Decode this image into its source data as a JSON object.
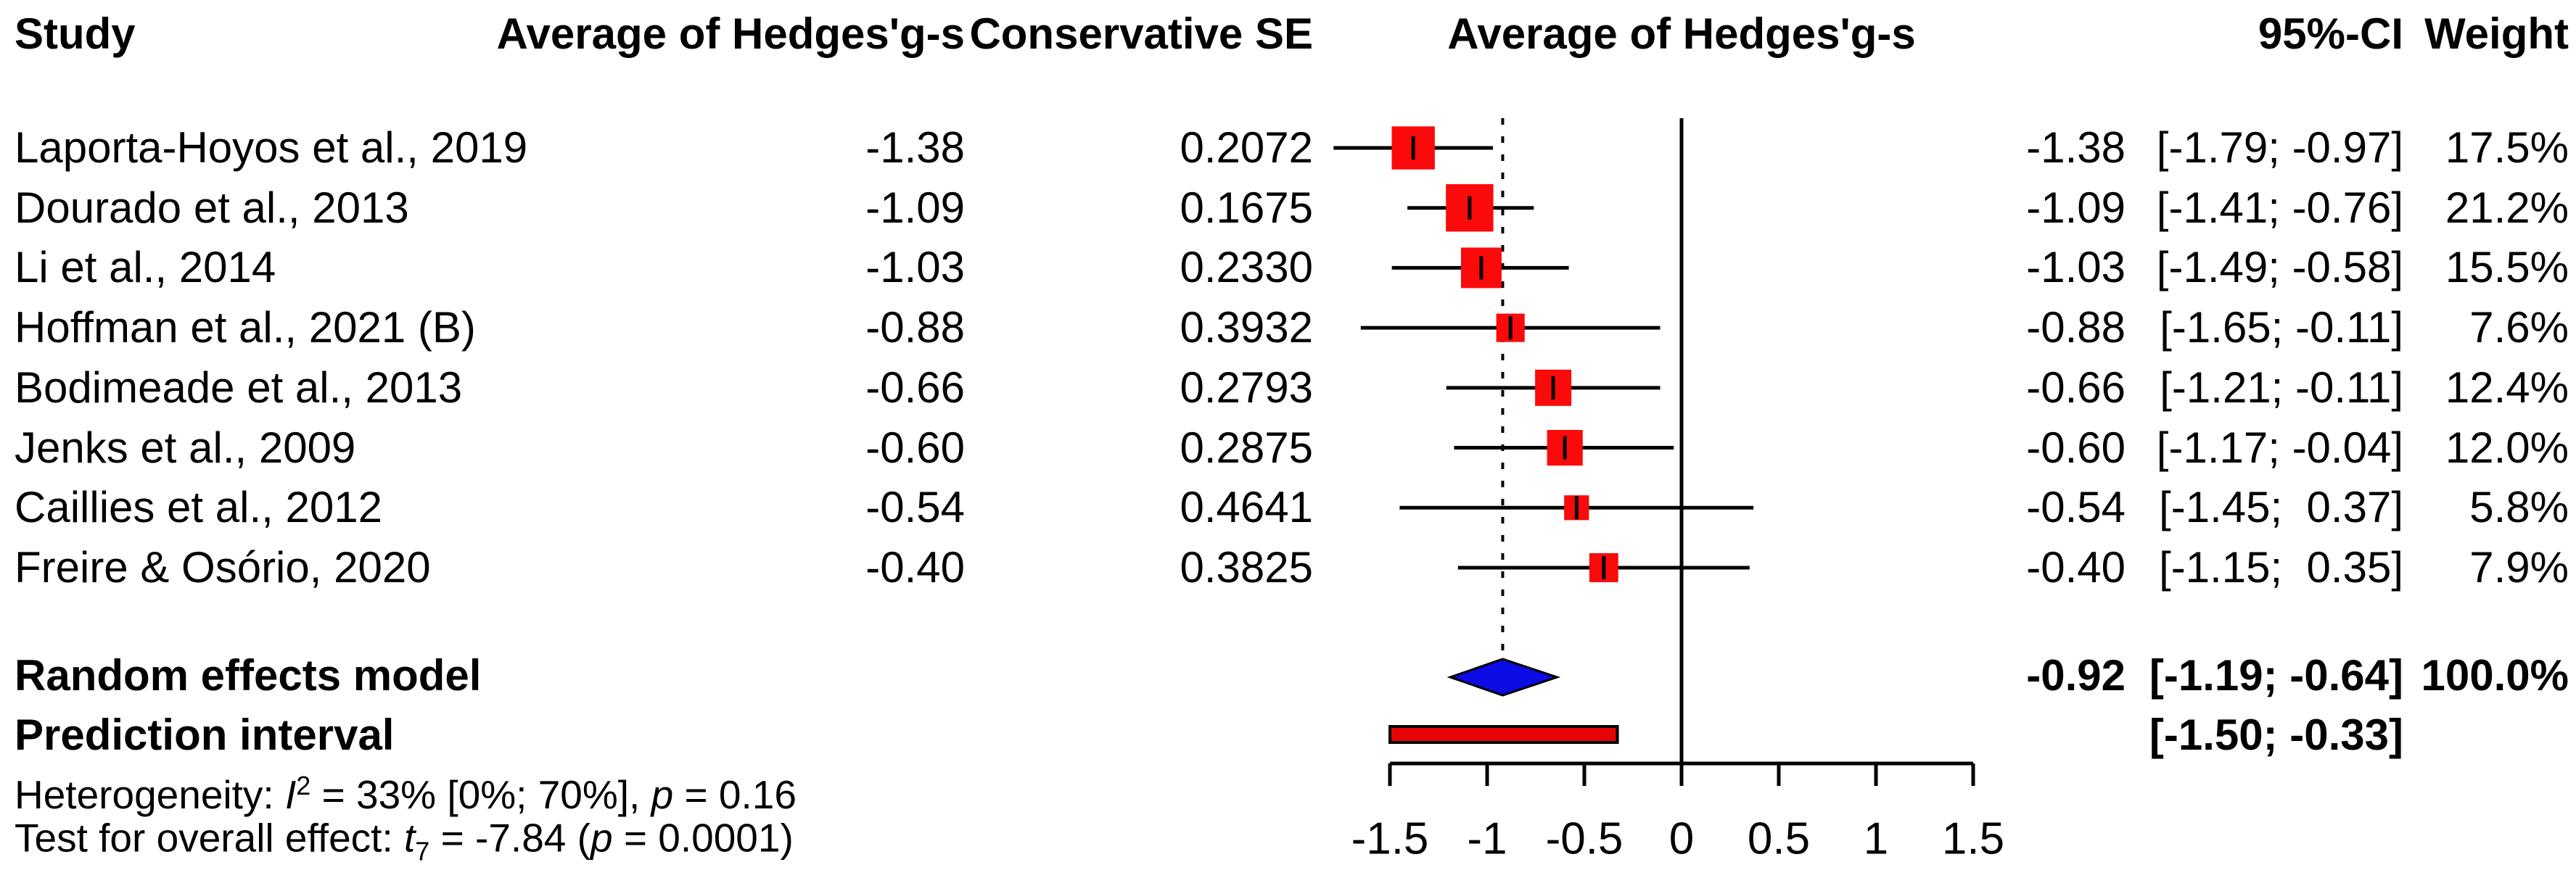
{
  "header": {
    "study": "Study",
    "avg": "Average of Hedges'g-s",
    "se": "Conservative SE",
    "plot": "Average of Hedges'g-s",
    "ci": "95%-CI",
    "weight": "Weight"
  },
  "chart_data": {
    "type": "forest",
    "effect_measure": "Average of Hedges'g-s",
    "x_axis": {
      "range": [
        -1.5,
        1.5
      ],
      "ticks": [
        -1.5,
        -1,
        -0.5,
        0,
        0.5,
        1,
        1.5
      ],
      "tick_labels": [
        "-1.5",
        "-1",
        "-0.5",
        "0",
        "0.5",
        "1",
        "1.5"
      ],
      "zero_line": 0,
      "pooled_dashed_line": -0.92
    },
    "studies": [
      {
        "name": "Laporta-Hoyos et al., 2019",
        "avg": "-1.38",
        "se": "0.2072",
        "est": -1.38,
        "lo": -1.79,
        "hi": -0.97,
        "est_text": "-1.38",
        "ci_text": "[-1.79; -0.97]",
        "weight_pct": 17.5,
        "weight_text": "17.5%"
      },
      {
        "name": "Dourado et al., 2013",
        "avg": "-1.09",
        "se": "0.1675",
        "est": -1.09,
        "lo": -1.41,
        "hi": -0.76,
        "est_text": "-1.09",
        "ci_text": "[-1.41; -0.76]",
        "weight_pct": 21.2,
        "weight_text": "21.2%"
      },
      {
        "name": "Li et al., 2014",
        "avg": "-1.03",
        "se": "0.2330",
        "est": -1.03,
        "lo": -1.49,
        "hi": -0.58,
        "est_text": "-1.03",
        "ci_text": "[-1.49; -0.58]",
        "weight_pct": 15.5,
        "weight_text": "15.5%"
      },
      {
        "name": "Hoffman et al., 2021 (B)",
        "avg": "-0.88",
        "se": "0.3932",
        "est": -0.88,
        "lo": -1.65,
        "hi": -0.11,
        "est_text": "-0.88",
        "ci_text": "[-1.65; -0.11]",
        "weight_pct": 7.6,
        "weight_text": "7.6%"
      },
      {
        "name": "Bodimeade et al., 2013",
        "avg": "-0.66",
        "se": "0.2793",
        "est": -0.66,
        "lo": -1.21,
        "hi": -0.11,
        "est_text": "-0.66",
        "ci_text": "[-1.21; -0.11]",
        "weight_pct": 12.4,
        "weight_text": "12.4%"
      },
      {
        "name": "Jenks et al., 2009",
        "avg": "-0.60",
        "se": "0.2875",
        "est": -0.6,
        "lo": -1.17,
        "hi": -0.04,
        "est_text": "-0.60",
        "ci_text": "[-1.17; -0.04]",
        "weight_pct": 12.0,
        "weight_text": "12.0%"
      },
      {
        "name": "Caillies et al., 2012",
        "avg": "-0.54",
        "se": "0.4641",
        "est": -0.54,
        "lo": -1.45,
        "hi": 0.37,
        "est_text": "-0.54",
        "ci_text": "[-1.45;  0.37]",
        "weight_pct": 5.8,
        "weight_text": "5.8%"
      },
      {
        "name": "Freire & Osório, 2020",
        "avg": "-0.40",
        "se": "0.3825",
        "est": -0.4,
        "lo": -1.15,
        "hi": 0.35,
        "est_text": "-0.40",
        "ci_text": "[-1.15;  0.35]",
        "weight_pct": 7.9,
        "weight_text": "7.9%"
      }
    ],
    "summary": {
      "label": "Random effects model",
      "est": -0.92,
      "lo": -1.19,
      "hi": -0.64,
      "est_text": "-0.92",
      "ci_text": "[-1.19; -0.64]",
      "weight_text": "100.0%"
    },
    "prediction": {
      "label": "Prediction interval",
      "lo": -1.5,
      "hi": -0.33,
      "ci_text": "[-1.50; -0.33]"
    },
    "colors": {
      "square": "#fa0a0a",
      "diamond": "#0b0be6",
      "prediction_fill": "#e60404",
      "line": "#000000"
    }
  },
  "stats": {
    "heterogeneity": {
      "prefix": "Heterogeneity: ",
      "stat": "I",
      "sup": "2",
      "mid": " = 33% [0%; 70%], ",
      "p": "p",
      "suffix": " = 0.16"
    },
    "overall": {
      "prefix": "Test for overall effect: ",
      "stat": "t",
      "sub": "7",
      "mid": " = -7.84 (",
      "p": "p",
      "suffix": " = 0.0001)"
    }
  }
}
